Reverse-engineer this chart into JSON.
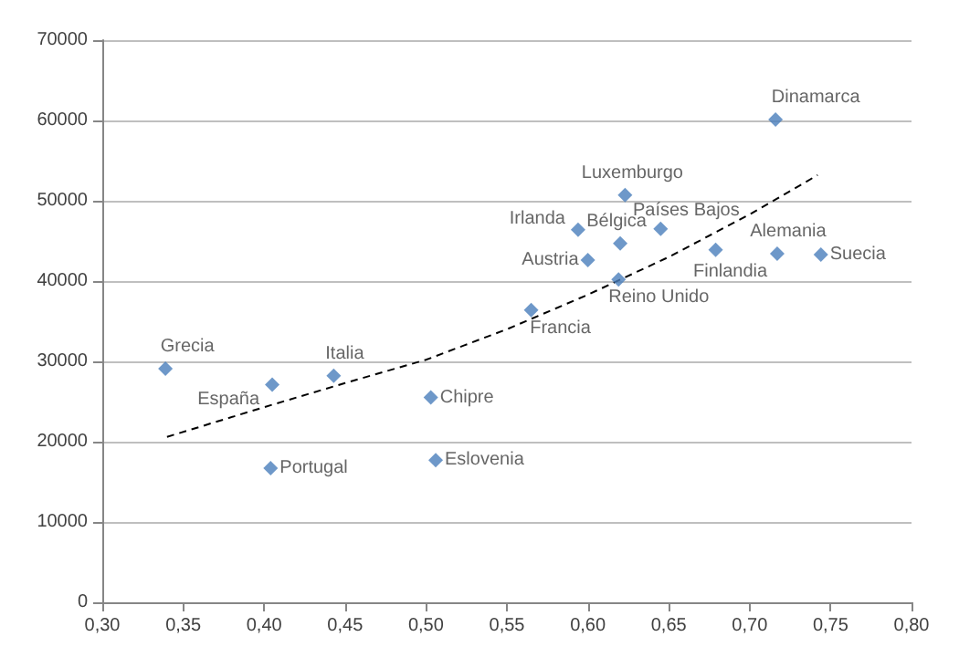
{
  "chart_data": {
    "type": "scatter",
    "marker": "diamond",
    "grid": "y",
    "xlim": [
      0.3,
      0.8
    ],
    "xticks": [
      {
        "value": 0.3,
        "label": "0,30"
      },
      {
        "value": 0.35,
        "label": "0,35"
      },
      {
        "value": 0.4,
        "label": "0,40"
      },
      {
        "value": 0.45,
        "label": "0,45"
      },
      {
        "value": 0.5,
        "label": "0,50"
      },
      {
        "value": 0.55,
        "label": "0,55"
      },
      {
        "value": 0.6,
        "label": "0,60"
      },
      {
        "value": 0.65,
        "label": "0,65"
      },
      {
        "value": 0.7,
        "label": "0,70"
      },
      {
        "value": 0.75,
        "label": "0,75"
      },
      {
        "value": 0.8,
        "label": "0,80"
      }
    ],
    "ylim": [
      0,
      70000
    ],
    "yticks": [
      0,
      10000,
      20000,
      30000,
      40000,
      50000,
      60000,
      70000
    ],
    "series": [
      {
        "color": "#4a7ebb",
        "x": [
          0.339,
          0.405,
          0.443,
          0.503,
          0.404,
          0.506,
          0.623,
          0.594,
          0.62,
          0.645,
          0.6,
          0.679,
          0.717,
          0.744,
          0.619,
          0.565,
          0.716
        ],
        "values": [
          29100,
          27100,
          28200,
          25500,
          16700,
          17700,
          50700,
          46400,
          44700,
          46500,
          42600,
          43900,
          43400,
          43300,
          40200,
          36400,
          60100
        ]
      },
      {
        "type": "line",
        "color": "#000000",
        "line_style": "dashed",
        "marker": "none",
        "x": [
          0.34,
          0.4,
          0.45,
          0.5,
          0.55,
          0.6,
          0.65,
          0.7,
          0.742
        ],
        "values": [
          20600,
          24300,
          27300,
          30200,
          34000,
          38300,
          43000,
          48300,
          53200
        ]
      }
    ],
    "annotations": [
      {
        "text": "Grecia",
        "x": 0.339,
        "y": 29100
      },
      {
        "text": "España",
        "x": 0.405,
        "y": 27100
      },
      {
        "text": "Italia",
        "x": 0.443,
        "y": 28200
      },
      {
        "text": "Chipre",
        "x": 0.503,
        "y": 25500
      },
      {
        "text": "Portugal",
        "x": 0.404,
        "y": 16700
      },
      {
        "text": "Eslovenia",
        "x": 0.506,
        "y": 17700
      },
      {
        "text": "Luxemburgo",
        "x": 0.623,
        "y": 50700
      },
      {
        "text": "Irlanda",
        "x": 0.594,
        "y": 46400
      },
      {
        "text": "Bélgica",
        "x": 0.62,
        "y": 44700
      },
      {
        "text": "Países Bajos",
        "x": 0.645,
        "y": 46500
      },
      {
        "text": "Austria",
        "x": 0.6,
        "y": 42600
      },
      {
        "text": "Finlandia",
        "x": 0.679,
        "y": 43900
      },
      {
        "text": "Alemania",
        "x": 0.717,
        "y": 43400
      },
      {
        "text": "Suecia",
        "x": 0.744,
        "y": 43300
      },
      {
        "text": "Reino Unido",
        "x": 0.619,
        "y": 40200
      },
      {
        "text": "Francia",
        "x": 0.565,
        "y": 36400
      },
      {
        "text": "Dinamarca",
        "x": 0.716,
        "y": 60100
      }
    ]
  }
}
